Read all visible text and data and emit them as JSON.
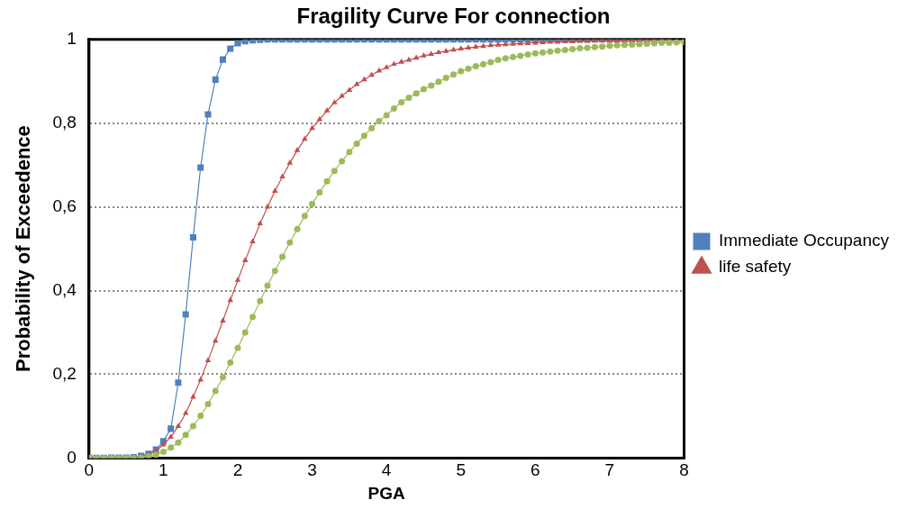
{
  "chart_data": {
    "type": "line",
    "title": "Fragility Curve For connection",
    "xlabel": "PGA",
    "ylabel": "Probability of Exceedence",
    "x": [
      0,
      0.1,
      0.2,
      0.3,
      0.4,
      0.5,
      0.6,
      0.7,
      0.8,
      0.9,
      1,
      1.1,
      1.2,
      1.3,
      1.4,
      1.5,
      1.6,
      1.7,
      1.8,
      1.9,
      2,
      2.1,
      2.2,
      2.3,
      2.4,
      2.5,
      2.6,
      2.7,
      2.8,
      2.9,
      3,
      3.1,
      3.2,
      3.3,
      3.4,
      3.5,
      3.6,
      3.7,
      3.8,
      3.9,
      4,
      4.1,
      4.2,
      4.3,
      4.4,
      4.5,
      4.6,
      4.7,
      4.8,
      4.9,
      5,
      5.1,
      5.2,
      5.3,
      5.4,
      5.5,
      5.6,
      5.7,
      5.8,
      5.9,
      6,
      6.1,
      6.2,
      6.3,
      6.4,
      6.5,
      6.6,
      6.7,
      6.8,
      6.9,
      7,
      7.1,
      7.2,
      7.3,
      7.4,
      7.5,
      7.6,
      7.7,
      7.8,
      7.9,
      8
    ],
    "series": [
      {
        "name": "Immediate Occupancy",
        "color": "#4f81bd",
        "marker": "square",
        "values": [
          0,
          0,
          0,
          0.001,
          0.001,
          0.001,
          0.002,
          0.005,
          0.01,
          0.02,
          0.04,
          0.07,
          0.18,
          0.343,
          0.527,
          0.694,
          0.821,
          0.904,
          0.952,
          0.978,
          0.991,
          0.996,
          0.998,
          0.999,
          1,
          1,
          1,
          1,
          1,
          1,
          1,
          1,
          1,
          1,
          1,
          1,
          1,
          1,
          1,
          1,
          1,
          1,
          1,
          1,
          1,
          1,
          1,
          1,
          1,
          1,
          1,
          1,
          1,
          1,
          1,
          1,
          1,
          1,
          1,
          1,
          1,
          1,
          1,
          1,
          1,
          1,
          1,
          1,
          1,
          1,
          1,
          1,
          1,
          1,
          1,
          1,
          1,
          1,
          1,
          null,
          null
        ]
      },
      {
        "name": "life safety",
        "color": "#c0504d",
        "marker": "triangle",
        "values": [
          null,
          null,
          null,
          null,
          null,
          null,
          0.001,
          0.003,
          0.008,
          0.017,
          0.032,
          0.05,
          0.076,
          0.107,
          0.146,
          0.187,
          0.233,
          0.28,
          0.328,
          0.377,
          0.425,
          0.472,
          0.517,
          0.56,
          0.6,
          0.638,
          0.672,
          0.705,
          0.735,
          0.762,
          0.788,
          0.809,
          0.83,
          0.849,
          0.865,
          0.879,
          0.893,
          0.904,
          0.915,
          0.925,
          0.933,
          0.941,
          0.946,
          0.951,
          0.956,
          0.961,
          0.965,
          0.969,
          0.972,
          0.975,
          0.978,
          0.98,
          0.982,
          0.984,
          0.986,
          0.987,
          0.988,
          0.989,
          0.99,
          0.991,
          0.992,
          0.993,
          0.994,
          0.994,
          0.995,
          0.995,
          0.996,
          0.996,
          0.997,
          0.997,
          0.997,
          0.997,
          0.998,
          0.998,
          0.998,
          0.998,
          0.998,
          0.999,
          0.999,
          0.999,
          0.999
        ]
      },
      {
        "color": "#9bbb59",
        "marker": "circle",
        "values": [
          0,
          0,
          0,
          0,
          0,
          0,
          0,
          0.001,
          0.004,
          0.008,
          0.015,
          0.025,
          0.037,
          0.055,
          0.076,
          0.101,
          0.129,
          0.16,
          0.193,
          0.228,
          0.263,
          0.3,
          0.337,
          0.375,
          0.412,
          0.447,
          0.481,
          0.515,
          0.547,
          0.578,
          0.607,
          0.635,
          0.661,
          0.686,
          0.709,
          0.731,
          0.751,
          0.77,
          0.788,
          0.805,
          0.819,
          0.835,
          0.85,
          0.861,
          0.871,
          0.881,
          0.89,
          0.899,
          0.908,
          0.916,
          0.924,
          0.93,
          0.936,
          0.941,
          0.946,
          0.951,
          0.955,
          0.958,
          0.961,
          0.964,
          0.967,
          0.969,
          0.971,
          0.973,
          0.975,
          0.977,
          0.979,
          0.98,
          0.982,
          0.983,
          0.985,
          0.986,
          0.987,
          0.988,
          0.989,
          0.99,
          0.991,
          0.992,
          0.992,
          0.993,
          0.994
        ]
      }
    ],
    "xlim": [
      0,
      8
    ],
    "xticks": [
      0,
      1,
      2,
      3,
      4,
      5,
      6,
      7,
      8
    ],
    "ylim": [
      0,
      1
    ],
    "yticks": [
      0,
      {
        "value": 0.2,
        "label": "0,2"
      },
      {
        "value": 0.4,
        "label": "0,4"
      },
      {
        "value": 0.6,
        "label": "0,6"
      },
      {
        "value": 0.8,
        "label": "0,8"
      },
      1
    ],
    "grid": "y",
    "legend": "right",
    "line_style": "solid"
  }
}
